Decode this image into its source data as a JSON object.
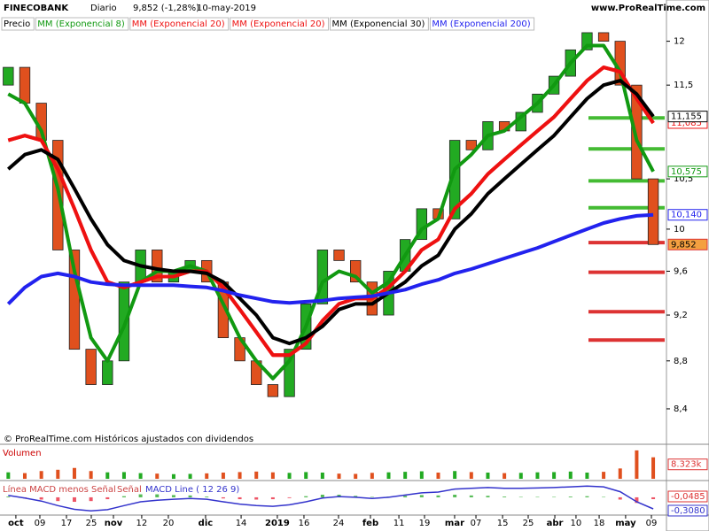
{
  "chart_data": {
    "type": "candlestick",
    "title": "FINECOBANK",
    "period": "Diario",
    "price_text": "9,852 (-1,28%)",
    "date_text": "10-may-2019",
    "site": "www.ProRealTime.com",
    "footer": "© ProRealTime.com Históricos ajustados con dividendos",
    "price_label": "Precio",
    "log_scale": true,
    "x": [
      0,
      1,
      2,
      3,
      4,
      5,
      6,
      7,
      8,
      9,
      10,
      11,
      12,
      13,
      14,
      15,
      16,
      17,
      18,
      19,
      20,
      21,
      22,
      23,
      24,
      25,
      26,
      27,
      28,
      29,
      30,
      31,
      32,
      33,
      34,
      35,
      36,
      37,
      38,
      39
    ],
    "open": [
      11.5,
      11.7,
      11.3,
      10.9,
      9.8,
      8.9,
      8.6,
      8.8,
      9.5,
      9.8,
      9.5,
      9.6,
      9.7,
      9.5,
      9.0,
      8.8,
      8.6,
      8.5,
      8.9,
      9.3,
      9.8,
      9.7,
      9.5,
      9.2,
      9.6,
      9.9,
      10.2,
      10.1,
      10.9,
      10.8,
      11.1,
      11.0,
      11.2,
      11.4,
      11.6,
      11.9,
      12.1,
      12.0,
      11.5,
      10.5
    ],
    "close": [
      11.7,
      11.3,
      10.9,
      9.8,
      8.9,
      8.6,
      8.8,
      9.5,
      9.8,
      9.5,
      9.6,
      9.7,
      9.5,
      9.0,
      8.8,
      8.6,
      8.5,
      8.9,
      9.3,
      9.8,
      9.7,
      9.5,
      9.2,
      9.6,
      9.9,
      10.2,
      10.1,
      10.9,
      10.8,
      11.1,
      11.0,
      11.2,
      11.4,
      11.6,
      11.9,
      12.1,
      12.0,
      11.5,
      10.5,
      9.852
    ],
    "close_last_label": "9,852",
    "up_color": "#22aa22",
    "down_color": "#e0501e",
    "series": [
      {
        "name": "MM (Exponencial 8)",
        "color": "#119911",
        "values": [
          11.4,
          11.3,
          11.0,
          10.4,
          9.6,
          9.0,
          8.8,
          9.1,
          9.5,
          9.6,
          9.6,
          9.65,
          9.6,
          9.3,
          9.0,
          8.8,
          8.65,
          8.8,
          9.1,
          9.5,
          9.6,
          9.55,
          9.4,
          9.5,
          9.75,
          10.0,
          10.1,
          10.6,
          10.75,
          10.95,
          11.0,
          11.15,
          11.3,
          11.5,
          11.75,
          11.95,
          11.95,
          11.65,
          10.9,
          10.575
        ],
        "last_label": "10,575"
      },
      {
        "name": "MM (Exponencial 20)",
        "color": "#ee1111",
        "values": [
          10.9,
          10.95,
          10.9,
          10.6,
          10.2,
          9.8,
          9.5,
          9.45,
          9.5,
          9.55,
          9.55,
          9.6,
          9.6,
          9.45,
          9.25,
          9.05,
          8.85,
          8.85,
          8.95,
          9.15,
          9.3,
          9.35,
          9.35,
          9.45,
          9.6,
          9.8,
          9.9,
          10.2,
          10.35,
          10.55,
          10.7,
          10.85,
          11.0,
          11.15,
          11.35,
          11.55,
          11.7,
          11.65,
          11.35,
          11.085
        ],
        "last_label": "11,085"
      },
      {
        "name": "MM (Exponencial 20)",
        "color": "#ee1111",
        "values": [
          10.9,
          10.95,
          10.9,
          10.6,
          10.2,
          9.8,
          9.5,
          9.45,
          9.5,
          9.55,
          9.55,
          9.6,
          9.6,
          9.45,
          9.25,
          9.05,
          8.85,
          8.85,
          8.95,
          9.15,
          9.3,
          9.35,
          9.35,
          9.45,
          9.6,
          9.8,
          9.9,
          10.2,
          10.35,
          10.55,
          10.7,
          10.85,
          11.0,
          11.15,
          11.35,
          11.55,
          11.7,
          11.65,
          11.35,
          11.085
        ]
      },
      {
        "name": "MM (Exponencial 30)",
        "color": "#000000",
        "values": [
          10.6,
          10.75,
          10.8,
          10.7,
          10.4,
          10.1,
          9.85,
          9.7,
          9.65,
          9.62,
          9.6,
          9.6,
          9.58,
          9.5,
          9.35,
          9.2,
          9.0,
          8.95,
          9.0,
          9.1,
          9.25,
          9.3,
          9.3,
          9.4,
          9.5,
          9.65,
          9.75,
          10.0,
          10.15,
          10.35,
          10.5,
          10.65,
          10.8,
          10.95,
          11.15,
          11.35,
          11.5,
          11.55,
          11.4,
          11.155
        ],
        "last_label": "11,155"
      },
      {
        "name": "MM (Exponencial 200)",
        "color": "#2222ee",
        "values": [
          9.3,
          9.45,
          9.55,
          9.58,
          9.55,
          9.5,
          9.48,
          9.47,
          9.47,
          9.47,
          9.47,
          9.46,
          9.45,
          9.42,
          9.38,
          9.35,
          9.32,
          9.31,
          9.32,
          9.33,
          9.35,
          9.36,
          9.37,
          9.4,
          9.43,
          9.48,
          9.52,
          9.58,
          9.62,
          9.67,
          9.72,
          9.77,
          9.82,
          9.88,
          9.94,
          10.0,
          10.06,
          10.1,
          10.13,
          10.14
        ],
        "last_label": "10,140"
      }
    ],
    "levels": [
      {
        "value": 11.14,
        "color": "#44bb33"
      },
      {
        "value": 10.81,
        "color": "#44bb33"
      },
      {
        "value": 10.48,
        "color": "#44bb33"
      },
      {
        "value": 10.21,
        "color": "#44bb33"
      },
      {
        "value": 9.87,
        "color": "#dd3333"
      },
      {
        "value": 9.59,
        "color": "#dd3333"
      },
      {
        "value": 9.23,
        "color": "#dd3333"
      },
      {
        "value": 8.98,
        "color": "#dd3333"
      }
    ],
    "xlim": [
      -0.5,
      39.8
    ],
    "ylim": [
      8.13,
      12.49
    ],
    "yticks": [
      {
        "value": 8.4,
        "label": "8,4"
      },
      {
        "value": 8.8,
        "label": "8,8"
      },
      {
        "value": 9.2,
        "label": "9,2"
      },
      {
        "value": 9.6,
        "label": "9,6"
      },
      10,
      {
        "value": 10.5,
        "label": "10,5"
      },
      {
        "value": 11.5,
        "label": "11,5"
      },
      12
    ],
    "xticks": [
      {
        "value": 0.46,
        "label": "oct"
      },
      {
        "value": 1.91,
        "label": "09"
      },
      {
        "value": 3.52,
        "label": "17"
      },
      {
        "value": 5.02,
        "label": "25"
      },
      {
        "value": 6.36,
        "label": "nov"
      },
      {
        "value": 8.07,
        "label": "12"
      },
      {
        "value": 9.68,
        "label": "20"
      },
      {
        "value": 11.93,
        "label": "dic"
      },
      {
        "value": 14.08,
        "label": "14"
      },
      {
        "value": 16.27,
        "label": "2019"
      },
      {
        "value": 17.88,
        "label": "16"
      },
      {
        "value": 19.97,
        "label": "24"
      },
      {
        "value": 21.9,
        "label": "feb"
      },
      {
        "value": 23.62,
        "label": "11"
      },
      {
        "value": 25.17,
        "label": "19"
      },
      {
        "value": 26.99,
        "label": "mar"
      },
      {
        "value": 28.28,
        "label": "07"
      },
      {
        "value": 29.89,
        "label": "15"
      },
      {
        "value": 31.44,
        "label": "25"
      },
      {
        "value": 33.05,
        "label": "abr"
      },
      {
        "value": 34.33,
        "label": "10"
      },
      {
        "value": 35.73,
        "label": "18"
      },
      {
        "value": 37.33,
        "label": "may"
      },
      {
        "value": 38.89,
        "label": "09"
      }
    ],
    "volume": {
      "title": "Volumen",
      "values": [
        2500,
        2200,
        3000,
        3500,
        4200,
        3000,
        2500,
        2600,
        2200,
        2000,
        1800,
        1900,
        2100,
        2400,
        2600,
        2800,
        2500,
        2300,
        2600,
        2400,
        2000,
        1900,
        2300,
        2500,
        2700,
        2900,
        2400,
        3000,
        2600,
        2400,
        2200,
        2300,
        2500,
        2600,
        2800,
        2400,
        2700,
        4000,
        11000,
        8323
      ],
      "ylim": [
        0,
        12000
      ],
      "last_label": "8.323k"
    },
    "macd": {
      "hist_name": "Línea MACD menos Señal",
      "signal_name": "Señal",
      "line_name": "MACD Line ( 12 26 9)",
      "ylim": [
        -0.45,
        0.4
      ],
      "line": [
        0.05,
        -0.02,
        -0.1,
        -0.22,
        -0.32,
        -0.36,
        -0.33,
        -0.22,
        -0.12,
        -0.08,
        -0.05,
        -0.03,
        -0.05,
        -0.12,
        -0.18,
        -0.22,
        -0.24,
        -0.2,
        -0.12,
        -0.02,
        0.02,
        0.0,
        -0.03,
        0.0,
        0.06,
        0.12,
        0.14,
        0.22,
        0.24,
        0.26,
        0.24,
        0.24,
        0.25,
        0.26,
        0.28,
        0.3,
        0.28,
        0.15,
        -0.12,
        -0.308
      ],
      "hist": [
        0.02,
        -0.03,
        -0.06,
        -0.1,
        -0.12,
        -0.1,
        -0.05,
        0.03,
        0.08,
        0.08,
        0.06,
        0.05,
        0.02,
        -0.03,
        -0.05,
        -0.06,
        -0.05,
        -0.02,
        0.03,
        0.07,
        0.07,
        0.04,
        0.01,
        0.02,
        0.04,
        0.06,
        0.05,
        0.07,
        0.05,
        0.04,
        0.02,
        0.01,
        0.01,
        0.01,
        0.02,
        0.03,
        0.01,
        -0.06,
        -0.15,
        -0.0485
      ],
      "line_last_label": "-0,3080",
      "hist_last_label": "-0,0485",
      "line_color": "#3333cc",
      "hist_color": "#ee5566"
    }
  }
}
